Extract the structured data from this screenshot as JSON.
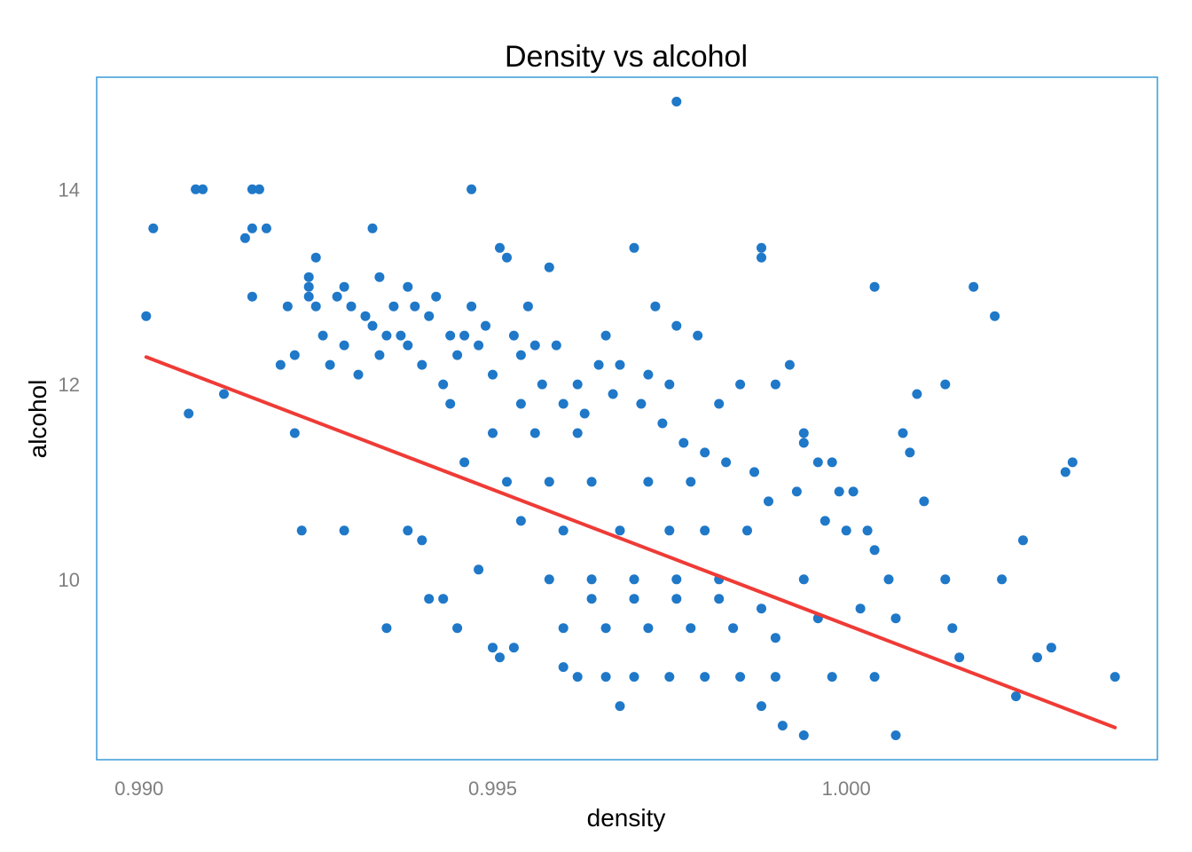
{
  "chart_data": {
    "type": "scatter",
    "title": "Density vs alcohol",
    "xlabel": "density",
    "ylabel": "alcohol",
    "xlim": [
      0.9894,
      1.0044
    ],
    "ylim": [
      8.15,
      15.15
    ],
    "x_ticks": [
      {
        "value": 0.99,
        "label": "0.990"
      },
      {
        "value": 0.995,
        "label": "0.995"
      },
      {
        "value": 1.0,
        "label": "1.000"
      }
    ],
    "y_ticks": [
      {
        "value": 10,
        "label": "10"
      },
      {
        "value": 12,
        "label": "12"
      },
      {
        "value": 14,
        "label": "14"
      }
    ],
    "grid": false,
    "legend": "none",
    "point_color": "#1f78c8",
    "line_color": "#ef3b36",
    "frame_color": "#3a9ad9",
    "trend_line": {
      "x": [
        0.9901,
        1.0038
      ],
      "y": [
        12.28,
        8.48
      ]
    },
    "points": [
      [
        0.9976,
        14.9
      ],
      [
        0.9901,
        12.7
      ],
      [
        0.9902,
        13.6
      ],
      [
        0.9908,
        14.0
      ],
      [
        0.9909,
        14.0
      ],
      [
        0.9907,
        11.7
      ],
      [
        0.9916,
        14.0
      ],
      [
        0.9917,
        14.0
      ],
      [
        0.9915,
        13.5
      ],
      [
        0.9916,
        13.6
      ],
      [
        0.9918,
        13.6
      ],
      [
        0.9916,
        12.9
      ],
      [
        0.9912,
        11.9
      ],
      [
        0.992,
        12.2
      ],
      [
        0.9921,
        12.8
      ],
      [
        0.9922,
        12.3
      ],
      [
        0.9922,
        11.5
      ],
      [
        0.9924,
        13.1
      ],
      [
        0.9925,
        13.3
      ],
      [
        0.9924,
        12.9
      ],
      [
        0.9925,
        12.8
      ],
      [
        0.9924,
        13.0
      ],
      [
        0.9926,
        12.5
      ],
      [
        0.9927,
        12.2
      ],
      [
        0.9928,
        12.9
      ],
      [
        0.9929,
        13.0
      ],
      [
        0.9929,
        12.4
      ],
      [
        0.993,
        12.8
      ],
      [
        0.9931,
        12.1
      ],
      [
        0.9932,
        12.7
      ],
      [
        0.9933,
        12.6
      ],
      [
        0.9933,
        13.6
      ],
      [
        0.9934,
        13.1
      ],
      [
        0.9935,
        12.5
      ],
      [
        0.9934,
        12.3
      ],
      [
        0.9936,
        12.8
      ],
      [
        0.9937,
        12.5
      ],
      [
        0.9938,
        13.0
      ],
      [
        0.9938,
        12.4
      ],
      [
        0.9939,
        12.8
      ],
      [
        0.994,
        12.2
      ],
      [
        0.9941,
        12.7
      ],
      [
        0.9942,
        12.9
      ],
      [
        0.9943,
        12.0
      ],
      [
        0.9944,
        12.5
      ],
      [
        0.9945,
        12.3
      ],
      [
        0.9946,
        12.5
      ],
      [
        0.9947,
        14.0
      ],
      [
        0.9947,
        12.8
      ],
      [
        0.9948,
        12.4
      ],
      [
        0.9949,
        12.6
      ],
      [
        0.995,
        12.1
      ],
      [
        0.9951,
        13.4
      ],
      [
        0.9952,
        13.3
      ],
      [
        0.9953,
        12.5
      ],
      [
        0.9954,
        12.3
      ],
      [
        0.9955,
        12.8
      ],
      [
        0.9956,
        12.4
      ],
      [
        0.9957,
        12.0
      ],
      [
        0.9958,
        13.2
      ],
      [
        0.9959,
        12.4
      ],
      [
        0.996,
        11.8
      ],
      [
        0.9962,
        12.0
      ],
      [
        0.9963,
        11.7
      ],
      [
        0.9965,
        12.2
      ],
      [
        0.9966,
        12.5
      ],
      [
        0.9967,
        11.9
      ],
      [
        0.9968,
        12.2
      ],
      [
        0.997,
        13.4
      ],
      [
        0.9971,
        11.8
      ],
      [
        0.9972,
        12.1
      ],
      [
        0.9973,
        12.8
      ],
      [
        0.9974,
        11.6
      ],
      [
        0.9975,
        12.0
      ],
      [
        0.9976,
        12.6
      ],
      [
        0.9977,
        11.4
      ],
      [
        0.9979,
        12.5
      ],
      [
        0.998,
        11.3
      ],
      [
        0.9982,
        11.8
      ],
      [
        0.9983,
        11.2
      ],
      [
        0.9985,
        12.0
      ],
      [
        0.9987,
        11.1
      ],
      [
        0.9988,
        13.4
      ],
      [
        0.9988,
        13.3
      ],
      [
        0.9989,
        10.8
      ],
      [
        0.999,
        12.0
      ],
      [
        0.9992,
        12.2
      ],
      [
        0.9993,
        10.9
      ],
      [
        0.9994,
        11.4
      ],
      [
        0.9994,
        11.5
      ],
      [
        0.9996,
        11.2
      ],
      [
        0.9997,
        10.6
      ],
      [
        0.9998,
        11.2
      ],
      [
        0.9999,
        10.9
      ],
      [
        1.0,
        10.5
      ],
      [
        1.0001,
        10.9
      ],
      [
        1.0002,
        9.7
      ],
      [
        1.0003,
        10.5
      ],
      [
        1.0004,
        13.0
      ],
      [
        1.0004,
        10.3
      ],
      [
        1.0006,
        10.0
      ],
      [
        1.0007,
        9.6
      ],
      [
        1.0008,
        11.5
      ],
      [
        1.0009,
        11.3
      ],
      [
        1.001,
        11.9
      ],
      [
        1.0011,
        10.8
      ],
      [
        1.0014,
        12.0
      ],
      [
        1.0014,
        10.0
      ],
      [
        1.0015,
        9.5
      ],
      [
        1.0016,
        9.2
      ],
      [
        1.0018,
        13.0
      ],
      [
        1.0021,
        12.7
      ],
      [
        1.0022,
        10.0
      ],
      [
        1.0025,
        10.4
      ],
      [
        1.0027,
        9.2
      ],
      [
        1.0029,
        9.3
      ],
      [
        1.0031,
        11.1
      ],
      [
        1.0032,
        11.2
      ],
      [
        1.0038,
        9.0
      ],
      [
        1.0024,
        8.8
      ],
      [
        1.0007,
        8.4
      ],
      [
        0.9994,
        8.4
      ],
      [
        0.9991,
        8.5
      ],
      [
        0.9988,
        8.7
      ],
      [
        0.9968,
        8.7
      ],
      [
        0.9935,
        9.5
      ],
      [
        0.9945,
        9.5
      ],
      [
        0.9923,
        10.5
      ],
      [
        0.9929,
        10.5
      ],
      [
        0.9938,
        10.5
      ],
      [
        0.994,
        10.4
      ],
      [
        0.9941,
        9.8
      ],
      [
        0.9943,
        9.8
      ],
      [
        0.9948,
        10.1
      ],
      [
        0.995,
        9.3
      ],
      [
        0.9951,
        9.2
      ],
      [
        0.9953,
        9.3
      ],
      [
        0.996,
        9.1
      ],
      [
        0.9962,
        9.0
      ],
      [
        0.9966,
        9.0
      ],
      [
        0.997,
        9.0
      ],
      [
        0.9975,
        9.0
      ],
      [
        0.998,
        9.0
      ],
      [
        0.9985,
        9.0
      ],
      [
        0.999,
        9.0
      ],
      [
        0.9998,
        9.0
      ],
      [
        1.0004,
        9.0
      ],
      [
        0.9972,
        9.5
      ],
      [
        0.9966,
        9.5
      ],
      [
        0.996,
        9.5
      ],
      [
        0.9978,
        9.5
      ],
      [
        0.9984,
        9.5
      ],
      [
        0.999,
        9.4
      ],
      [
        0.9964,
        9.8
      ],
      [
        0.997,
        9.8
      ],
      [
        0.9976,
        9.8
      ],
      [
        0.9982,
        9.8
      ],
      [
        0.9988,
        9.7
      ],
      [
        0.9996,
        9.6
      ],
      [
        0.9958,
        10.0
      ],
      [
        0.9964,
        10.0
      ],
      [
        0.997,
        10.0
      ],
      [
        0.9976,
        10.0
      ],
      [
        0.9982,
        10.0
      ],
      [
        0.9994,
        10.0
      ],
      [
        0.996,
        10.5
      ],
      [
        0.9968,
        10.5
      ],
      [
        0.9975,
        10.5
      ],
      [
        0.998,
        10.5
      ],
      [
        0.9986,
        10.5
      ],
      [
        0.9958,
        11.0
      ],
      [
        0.9964,
        11.0
      ],
      [
        0.9972,
        11.0
      ],
      [
        0.9978,
        11.0
      ],
      [
        0.995,
        11.5
      ],
      [
        0.9956,
        11.5
      ],
      [
        0.9962,
        11.5
      ],
      [
        0.9944,
        11.8
      ],
      [
        0.9954,
        11.8
      ],
      [
        0.9946,
        11.2
      ],
      [
        0.9952,
        11.0
      ],
      [
        0.9954,
        10.6
      ]
    ]
  }
}
